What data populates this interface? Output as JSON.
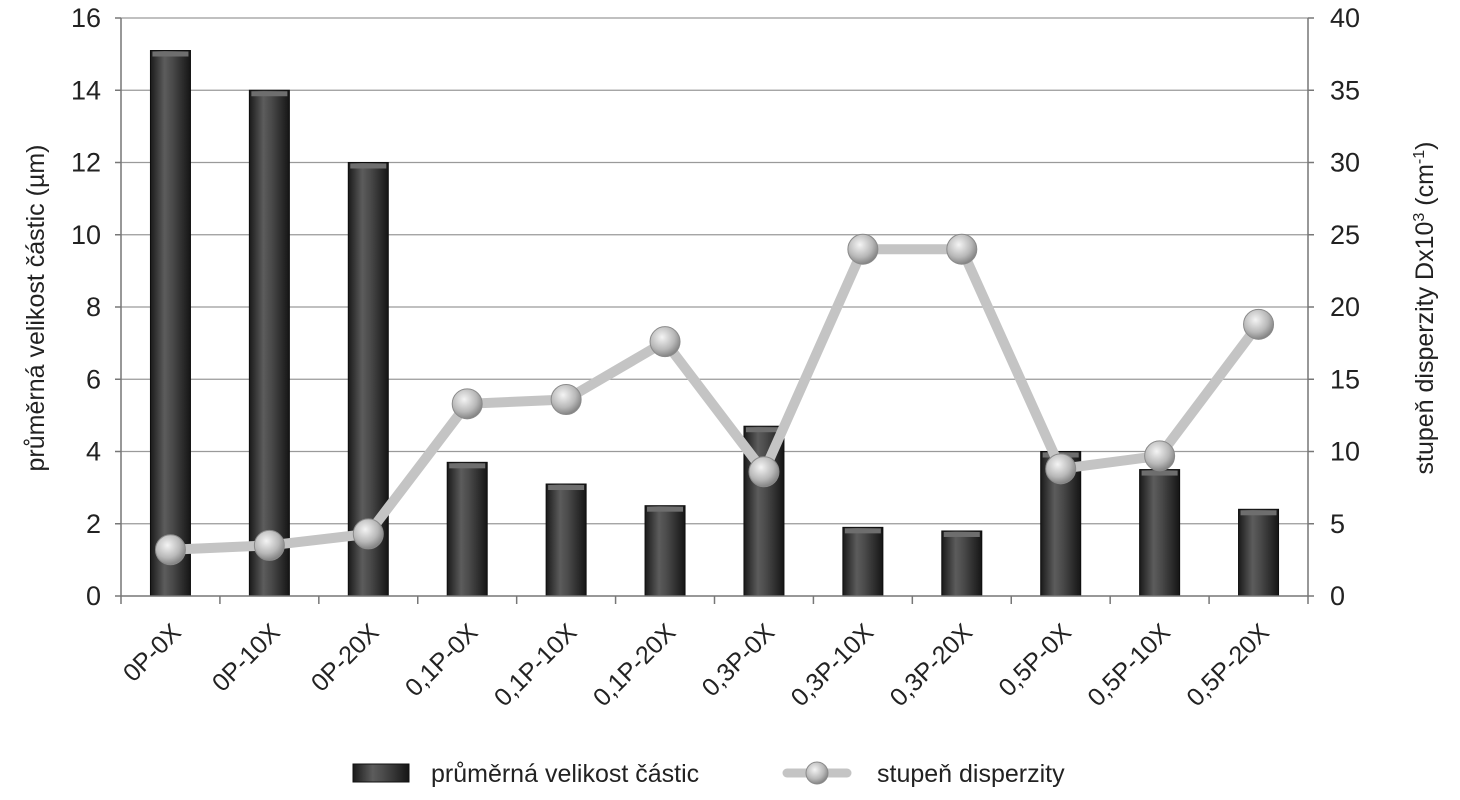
{
  "chart_data": {
    "type": "bar",
    "categories": [
      "0P-0X",
      "0P-10X",
      "0P-20X",
      "0,1P-0X",
      "0,1P-10X",
      "0,1P-20X",
      "0,3P-0X",
      "0,3P-10X",
      "0,3P-20X",
      "0,5P-0X",
      "0,5P-10X",
      "0,5P-20X"
    ],
    "series": [
      {
        "name": "průměrná velikost částic",
        "type": "bar",
        "axis": "left",
        "color": "#3a3a3a",
        "values": [
          15.1,
          14.0,
          12.0,
          3.7,
          3.1,
          2.5,
          4.7,
          1.9,
          1.8,
          4.0,
          3.5,
          2.4
        ]
      },
      {
        "name": "stupeň disperzity",
        "type": "line",
        "axis": "right",
        "color": "#c4c4c4",
        "values": [
          3.2,
          3.5,
          4.3,
          13.3,
          13.6,
          17.6,
          8.6,
          24.0,
          24.0,
          8.8,
          9.7,
          18.8
        ]
      }
    ],
    "ylabel": "průměrná velikost částic (µm)",
    "y2label_main": "stupeň disperzity Dx10",
    "y2label_sup1": "3",
    "y2label_mid": " (cm",
    "y2label_sup2": "-1",
    "y2label_end": ")",
    "ylim": [
      0,
      16
    ],
    "yticks": [
      0,
      2,
      4,
      6,
      8,
      10,
      12,
      14,
      16
    ],
    "y2lim": [
      0,
      40
    ],
    "y2ticks": [
      0,
      5,
      10,
      15,
      20,
      25,
      30,
      35,
      40
    ],
    "grid": true,
    "legend_position": "bottom"
  }
}
